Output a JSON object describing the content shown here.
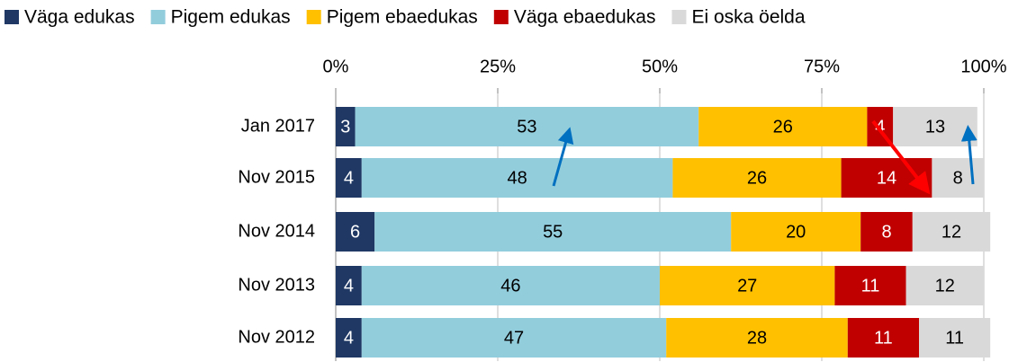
{
  "chart_data": {
    "type": "stacked-bar-horizontal",
    "categories": [
      "Jan 2017",
      "Nov 2015",
      "Nov 2014",
      "Nov 2013",
      "Nov 2012"
    ],
    "series": [
      {
        "name": "Väga edukas",
        "color": "#1f3864",
        "label_color": "#ffffff",
        "values": [
          3,
          4,
          6,
          4,
          4
        ]
      },
      {
        "name": "Pigem edukas",
        "color": "#92cddc",
        "label_color": "#000000",
        "values": [
          53,
          48,
          55,
          46,
          47
        ]
      },
      {
        "name": "Pigem ebaedukas",
        "color": "#ffc000",
        "label_color": "#000000",
        "values": [
          26,
          26,
          20,
          27,
          28
        ]
      },
      {
        "name": "Väga ebaedukas",
        "color": "#c00000",
        "label_color": "#ffffff",
        "values": [
          4,
          14,
          8,
          11,
          11
        ]
      },
      {
        "name": "Ei oska öelda",
        "color": "#d9d9d9",
        "label_color": "#000000",
        "values": [
          13,
          8,
          12,
          12,
          11
        ]
      }
    ],
    "xlim": [
      0,
      100
    ],
    "xticks": [
      {
        "value": 0,
        "label": "0%"
      },
      {
        "value": 25,
        "label": "25%"
      },
      {
        "value": 50,
        "label": "50%"
      },
      {
        "value": 75,
        "label": "75%"
      },
      {
        "value": 100,
        "label": "100%"
      }
    ],
    "grid": true,
    "legend": "top"
  }
}
